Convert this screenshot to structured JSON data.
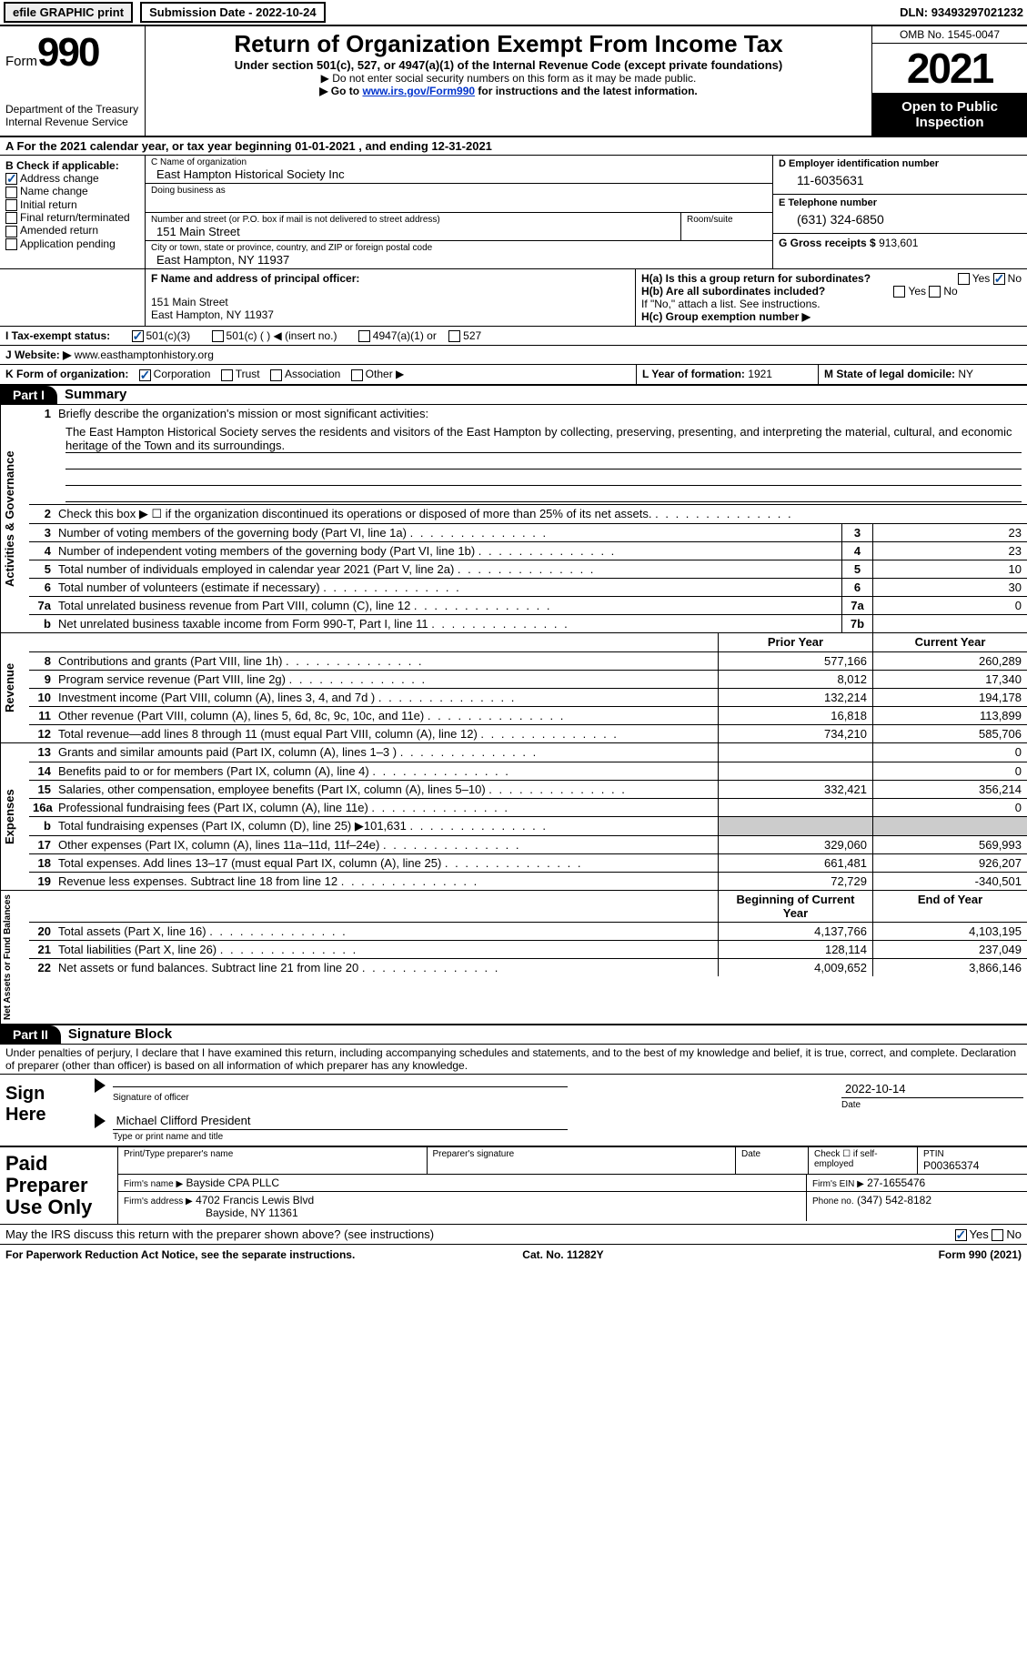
{
  "topbar": {
    "efile": "efile GRAPHIC print",
    "submission": "Submission Date - 2022-10-24",
    "dln_label": "DLN:",
    "dln": "93493297021232"
  },
  "header": {
    "form_word": "Form",
    "form_num": "990",
    "dept": "Department of the Treasury",
    "irs": "Internal Revenue Service",
    "title": "Return of Organization Exempt From Income Tax",
    "sub": "Under section 501(c), 527, or 4947(a)(1) of the Internal Revenue Code (except private foundations)",
    "note1": "Do not enter social security numbers on this form as it may be made public.",
    "note2_pre": "Go to ",
    "note2_link": "www.irs.gov/Form990",
    "note2_post": " for instructions and the latest information.",
    "omb": "OMB No. 1545-0047",
    "year": "2021",
    "open": "Open to Public Inspection"
  },
  "lineA": "A For the 2021 calendar year, or tax year beginning 01-01-2021    , and ending 12-31-2021",
  "colB": {
    "heading": "B Check if applicable:",
    "items": [
      {
        "label": "Address change",
        "checked": true
      },
      {
        "label": "Name change",
        "checked": false
      },
      {
        "label": "Initial return",
        "checked": false
      },
      {
        "label": "Final return/terminated",
        "checked": false
      },
      {
        "label": "Amended return",
        "checked": false
      },
      {
        "label": "Application pending",
        "checked": false
      }
    ]
  },
  "colC": {
    "name_lbl": "C Name of organization",
    "name": "East Hampton Historical Society Inc",
    "dba_lbl": "Doing business as",
    "dba": "",
    "addr_lbl": "Number and street (or P.O. box if mail is not delivered to street address)",
    "room_lbl": "Room/suite",
    "addr": "151 Main Street",
    "city_lbl": "City or town, state or province, country, and ZIP or foreign postal code",
    "city": "East Hampton, NY  11937"
  },
  "colD": {
    "ein_lbl": "D Employer identification number",
    "ein": "11-6035631",
    "phone_lbl": "E Telephone number",
    "phone": "(631) 324-6850",
    "gross_lbl": "G Gross receipts $",
    "gross": "913,601"
  },
  "rowF": {
    "lbl": "F  Name and address of principal officer:",
    "addr1": "151 Main Street",
    "addr2": "East Hampton, NY  11937"
  },
  "rowH": {
    "ha": "H(a)  Is this a group return for subordinates?",
    "hb": "H(b)  Are all subordinates included?",
    "hb_note": "If \"No,\" attach a list. See instructions.",
    "hc": "H(c)  Group exemption number ▶"
  },
  "rowI": {
    "lbl": "I   Tax-exempt status:",
    "opts": [
      "501(c)(3)",
      "501(c) (  ) ◀ (insert no.)",
      "4947(a)(1) or",
      "527"
    ]
  },
  "rowJ": {
    "lbl": "J  Website: ▶",
    "val": "www.easthamptonhistory.org"
  },
  "rowK": {
    "lbl": "K Form of organization:",
    "opts": [
      "Corporation",
      "Trust",
      "Association",
      "Other ▶"
    ],
    "L_lbl": "L Year of formation:",
    "L_val": "1921",
    "M_lbl": "M State of legal domicile:",
    "M_val": "NY"
  },
  "part1": {
    "hdr": "Part I",
    "title": "Summary"
  },
  "mission": {
    "num": "1",
    "lbl": "Briefly describe the organization's mission or most significant activities:",
    "text": "The East Hampton Historical Society serves the residents and visitors of the East Hampton by collecting, preserving, presenting, and interpreting the material, cultural, and economic heritage of the Town and its surroundings."
  },
  "governance": {
    "label": "Activities & Governance",
    "rows": [
      {
        "num": "2",
        "desc": "Check this box ▶ ☐  if the organization discontinued its operations or disposed of more than 25% of its net assets.",
        "box": "",
        "val": ""
      },
      {
        "num": "3",
        "desc": "Number of voting members of the governing body (Part VI, line 1a)",
        "box": "3",
        "val": "23"
      },
      {
        "num": "4",
        "desc": "Number of independent voting members of the governing body (Part VI, line 1b)",
        "box": "4",
        "val": "23"
      },
      {
        "num": "5",
        "desc": "Total number of individuals employed in calendar year 2021 (Part V, line 2a)",
        "box": "5",
        "val": "10"
      },
      {
        "num": "6",
        "desc": "Total number of volunteers (estimate if necessary)",
        "box": "6",
        "val": "30"
      },
      {
        "num": "7a",
        "desc": "Total unrelated business revenue from Part VIII, column (C), line 12",
        "box": "7a",
        "val": "0"
      },
      {
        "num": "b",
        "desc": "Net unrelated business taxable income from Form 990-T, Part I, line 11",
        "box": "7b",
        "val": ""
      }
    ]
  },
  "col_headers": {
    "prior": "Prior Year",
    "curr": "Current Year"
  },
  "revenue": {
    "label": "Revenue",
    "rows": [
      {
        "num": "8",
        "desc": "Contributions and grants (Part VIII, line 1h)",
        "prior": "577,166",
        "curr": "260,289"
      },
      {
        "num": "9",
        "desc": "Program service revenue (Part VIII, line 2g)",
        "prior": "8,012",
        "curr": "17,340"
      },
      {
        "num": "10",
        "desc": "Investment income (Part VIII, column (A), lines 3, 4, and 7d )",
        "prior": "132,214",
        "curr": "194,178"
      },
      {
        "num": "11",
        "desc": "Other revenue (Part VIII, column (A), lines 5, 6d, 8c, 9c, 10c, and 11e)",
        "prior": "16,818",
        "curr": "113,899"
      },
      {
        "num": "12",
        "desc": "Total revenue—add lines 8 through 11 (must equal Part VIII, column (A), line 12)",
        "prior": "734,210",
        "curr": "585,706"
      }
    ]
  },
  "expenses": {
    "label": "Expenses",
    "rows": [
      {
        "num": "13",
        "desc": "Grants and similar amounts paid (Part IX, column (A), lines 1–3 )",
        "prior": "",
        "curr": "0"
      },
      {
        "num": "14",
        "desc": "Benefits paid to or for members (Part IX, column (A), line 4)",
        "prior": "",
        "curr": "0"
      },
      {
        "num": "15",
        "desc": "Salaries, other compensation, employee benefits (Part IX, column (A), lines 5–10)",
        "prior": "332,421",
        "curr": "356,214"
      },
      {
        "num": "16a",
        "desc": "Professional fundraising fees (Part IX, column (A), line 11e)",
        "prior": "",
        "curr": "0"
      },
      {
        "num": "b",
        "desc": "Total fundraising expenses (Part IX, column (D), line 25) ▶101,631",
        "prior": "SHADED",
        "curr": "SHADED"
      },
      {
        "num": "17",
        "desc": "Other expenses (Part IX, column (A), lines 11a–11d, 11f–24e)",
        "prior": "329,060",
        "curr": "569,993"
      },
      {
        "num": "18",
        "desc": "Total expenses. Add lines 13–17 (must equal Part IX, column (A), line 25)",
        "prior": "661,481",
        "curr": "926,207"
      },
      {
        "num": "19",
        "desc": "Revenue less expenses. Subtract line 18 from line 12",
        "prior": "72,729",
        "curr": "-340,501"
      }
    ]
  },
  "netassets_hdr": {
    "prior": "Beginning of Current Year",
    "curr": "End of Year"
  },
  "netassets": {
    "label": "Net Assets or Fund Balances",
    "rows": [
      {
        "num": "20",
        "desc": "Total assets (Part X, line 16)",
        "prior": "4,137,766",
        "curr": "4,103,195"
      },
      {
        "num": "21",
        "desc": "Total liabilities (Part X, line 26)",
        "prior": "128,114",
        "curr": "237,049"
      },
      {
        "num": "22",
        "desc": "Net assets or fund balances. Subtract line 21 from line 20",
        "prior": "4,009,652",
        "curr": "3,866,146"
      }
    ]
  },
  "part2": {
    "hdr": "Part II",
    "title": "Signature Block",
    "penalty": "Under penalties of perjury, I declare that I have examined this return, including accompanying schedules and statements, and to the best of my knowledge and belief, it is true, correct, and complete. Declaration of preparer (other than officer) is based on all information of which preparer has any knowledge."
  },
  "sign": {
    "left": "Sign Here",
    "sig_lbl": "Signature of officer",
    "date_lbl": "Date",
    "date": "2022-10-14",
    "name": "Michael Clifford  President",
    "name_lbl": "Type or print name and title"
  },
  "preparer": {
    "left": "Paid Preparer Use Only",
    "h1": "Print/Type preparer's name",
    "h2": "Preparer's signature",
    "h3": "Date",
    "h4": "Check ☐ if self-employed",
    "h5_lbl": "PTIN",
    "h5": "P00365374",
    "firm_lbl": "Firm's name    ▶",
    "firm": "Bayside CPA PLLC",
    "ein_lbl": "Firm's EIN ▶",
    "ein": "27-1655476",
    "addr_lbl": "Firm's address ▶",
    "addr1": "4702 Francis Lewis Blvd",
    "addr2": "Bayside, NY  11361",
    "phone_lbl": "Phone no.",
    "phone": "(347) 542-8182"
  },
  "discuss": "May the IRS discuss this return with the preparer shown above? (see instructions)",
  "footer": {
    "left": "For Paperwork Reduction Act Notice, see the separate instructions.",
    "mid": "Cat. No. 11282Y",
    "right": "Form 990 (2021)"
  }
}
